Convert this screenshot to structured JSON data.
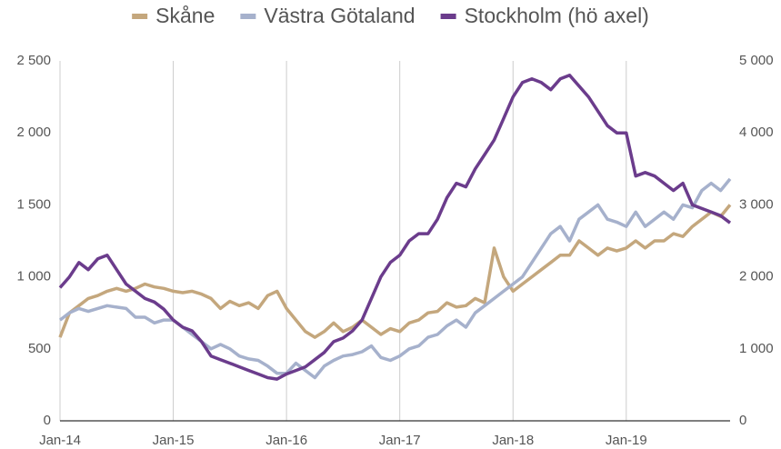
{
  "chart_data": {
    "type": "line",
    "categories": [
      "Jan-14",
      null,
      null,
      null,
      null,
      null,
      null,
      null,
      null,
      null,
      null,
      null,
      "Jan-15",
      null,
      null,
      null,
      null,
      null,
      null,
      null,
      null,
      null,
      null,
      null,
      "Jan-16",
      null,
      null,
      null,
      null,
      null,
      null,
      null,
      null,
      null,
      null,
      null,
      "Jan-17",
      null,
      null,
      null,
      null,
      null,
      null,
      null,
      null,
      null,
      null,
      null,
      "Jan-18",
      null,
      null,
      null,
      null,
      null,
      null,
      null,
      null,
      null,
      null,
      null,
      "Jan-19",
      null,
      null,
      null,
      null,
      null,
      null,
      null,
      null,
      null,
      null,
      null
    ],
    "series": [
      {
        "name": "Skåne",
        "color": "#c4a77d",
        "values": [
          580,
          750,
          800,
          850,
          870,
          900,
          920,
          900,
          920,
          950,
          930,
          920,
          900,
          890,
          900,
          880,
          850,
          780,
          830,
          800,
          820,
          780,
          870,
          900,
          780,
          700,
          620,
          580,
          620,
          680,
          620,
          650,
          700,
          650,
          600,
          640,
          620,
          680,
          700,
          750,
          760,
          820,
          790,
          800,
          850,
          820,
          1200,
          1000,
          900,
          950,
          1000,
          1050,
          1100,
          1150,
          1150,
          1250,
          1200,
          1150,
          1200,
          1180,
          1200,
          1250,
          1200,
          1250,
          1250,
          1300,
          1280,
          1350,
          1400,
          1450,
          1420,
          1500
        ]
      },
      {
        "name": "Västra Götaland",
        "color": "#a6b1cc",
        "values": [
          700,
          750,
          780,
          760,
          780,
          800,
          790,
          780,
          720,
          720,
          680,
          700,
          700,
          650,
          600,
          550,
          500,
          530,
          500,
          450,
          430,
          420,
          380,
          330,
          330,
          400,
          350,
          300,
          380,
          420,
          450,
          460,
          480,
          520,
          440,
          420,
          450,
          500,
          520,
          580,
          600,
          660,
          700,
          650,
          750,
          800,
          850,
          900,
          950,
          1000,
          1100,
          1200,
          1300,
          1350,
          1250,
          1400,
          1450,
          1500,
          1400,
          1380,
          1350,
          1450,
          1350,
          1400,
          1450,
          1400,
          1500,
          1480,
          1600,
          1650,
          1600,
          1680
        ]
      },
      {
        "name": "Stockholm (hö axel)",
        "color": "#6b3c8c",
        "axis": "y2",
        "values": [
          1850,
          2000,
          2200,
          2100,
          2250,
          2300,
          2100,
          1900,
          1800,
          1700,
          1650,
          1550,
          1400,
          1300,
          1250,
          1100,
          900,
          850,
          800,
          750,
          700,
          650,
          600,
          580,
          650,
          700,
          750,
          850,
          950,
          1100,
          1150,
          1250,
          1400,
          1700,
          2000,
          2200,
          2300,
          2500,
          2600,
          2600,
          2800,
          3100,
          3300,
          3250,
          3500,
          3700,
          3900,
          4200,
          4500,
          4700,
          4750,
          4700,
          4600,
          4750,
          4800,
          4650,
          4500,
          4300,
          4100,
          4000,
          4000,
          3400,
          3450,
          3400,
          3300,
          3200,
          3300,
          3000,
          2950,
          2900,
          2850,
          2750
        ]
      }
    ],
    "ylim": [
      0,
      2500
    ],
    "yticks": [
      0,
      500,
      {
        "value": 1000,
        "label": "1 000"
      },
      {
        "value": 1500,
        "label": "1 500"
      },
      {
        "value": 2000,
        "label": "2 000"
      },
      {
        "value": 2500,
        "label": "2 500"
      }
    ],
    "y2lim": [
      0,
      5000
    ],
    "y2ticks": [
      0,
      {
        "value": 1000,
        "label": "1 000"
      },
      {
        "value": 2000,
        "label": "2 000"
      },
      {
        "value": 3000,
        "label": "3 000"
      },
      {
        "value": 4000,
        "label": "4 000"
      },
      {
        "value": 5000,
        "label": "5 000"
      }
    ],
    "grid": "x",
    "legend": "top"
  }
}
